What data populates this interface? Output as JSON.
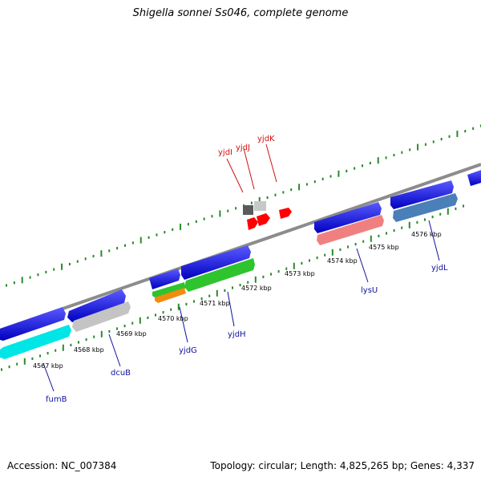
{
  "title": "Shigella sonnei Ss046, complete genome",
  "footer": {
    "accession": "Accession: NC_007384",
    "summary": "Topology: circular; Length: 4,825,265 bp; Genes: 4,337"
  },
  "colors": {
    "backbone": "#8c8c8c",
    "tick": "#2a8a2a",
    "forward_gene": "#1010e0",
    "label_forward": "#d01010",
    "label_reverse": "#1010a0",
    "cyan": "#00e5e5",
    "gray": "#bdbdbd",
    "dark_gray": "#5a5a5a",
    "green": "#2ec42e",
    "orange": "#f08c10",
    "salmon": "#f08080",
    "steel_blue": "#4a7fb8",
    "red": "#ff0000"
  },
  "scale_labels": [
    "4567 kbp",
    "4568 kbp",
    "4569 kbp",
    "4570 kbp",
    "4571 kbp",
    "4572 kbp",
    "4573 kbp",
    "4574 kbp",
    "4575 kbp",
    "4576 kbp"
  ],
  "gene_labels": {
    "forward": [
      "yjdI",
      "yjdJ",
      "yjdK"
    ],
    "reverse": [
      "fumB",
      "dcuB",
      "yjdG",
      "yjdH",
      "lysU",
      "yjdL"
    ]
  }
}
